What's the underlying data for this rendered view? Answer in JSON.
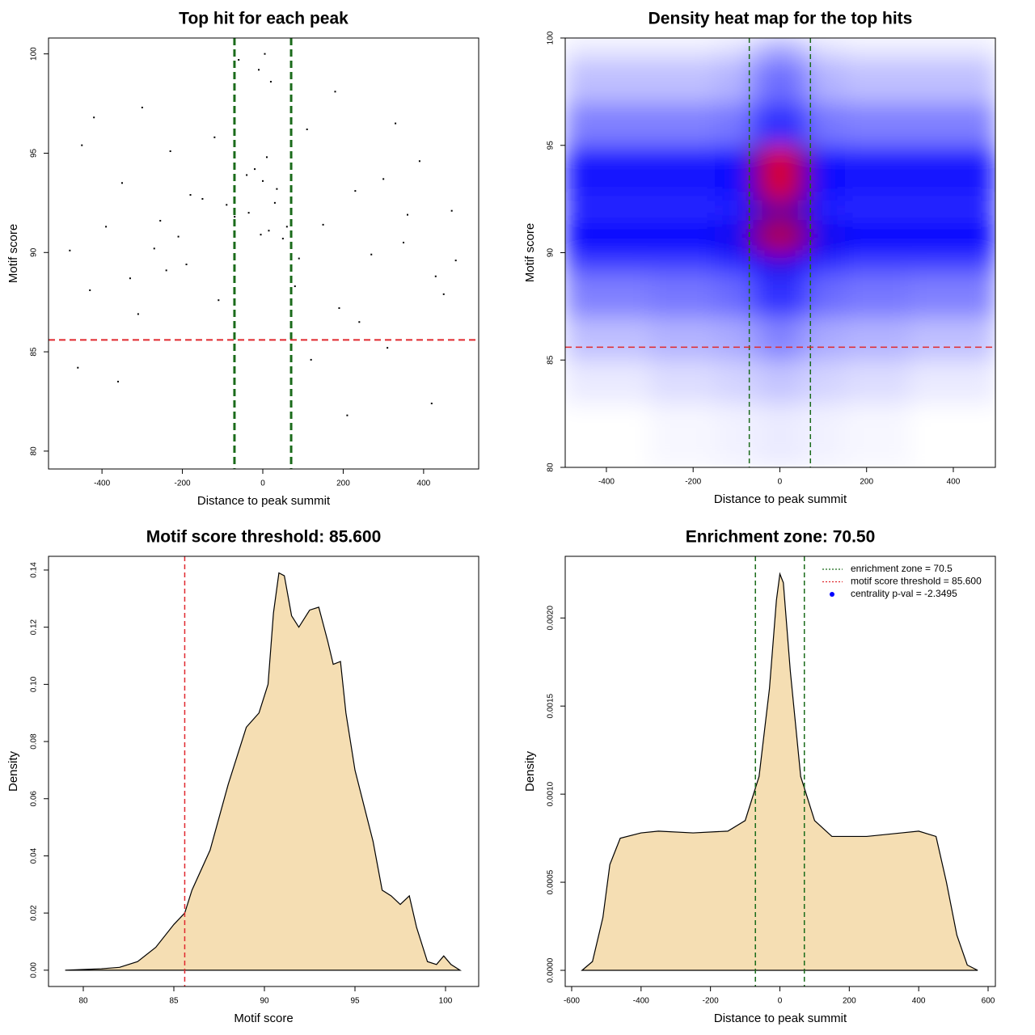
{
  "chart_data": [
    {
      "type": "scatter",
      "title": "Top hit for each peak",
      "x_label": "Distance to peak summit",
      "y_label": "Motif score",
      "xlim": [
        -533,
        537
      ],
      "ylim": [
        79.1,
        100.8
      ],
      "xticks": [
        -400,
        -200,
        0,
        200,
        400
      ],
      "yticks": [
        80,
        85,
        90,
        95,
        100
      ],
      "color": "#000000",
      "x": [
        -460,
        -430,
        -390,
        -350,
        -310,
        -270,
        -230,
        -190,
        -150,
        -110,
        -70,
        -40,
        -20,
        0,
        15,
        30,
        50,
        80,
        110,
        150,
        190,
        230,
        270,
        310,
        350,
        390,
        430,
        470,
        -480,
        -420,
        -360,
        -300,
        -240,
        -180,
        -120,
        -60,
        -10,
        20,
        60,
        120,
        180,
        240,
        300,
        360,
        420,
        480,
        -450,
        -330,
        -210,
        -90,
        10,
        90,
        210,
        330,
        450,
        -255,
        5,
        -5,
        35,
        -35
      ],
      "y": [
        84.2,
        88.1,
        91.3,
        93.5,
        86.9,
        90.2,
        95.1,
        89.4,
        92.7,
        87.6,
        91.8,
        93.9,
        94.2,
        93.6,
        91.1,
        92.5,
        90.7,
        88.3,
        96.2,
        91.4,
        87.2,
        93.1,
        89.9,
        85.2,
        90.5,
        94.6,
        88.8,
        92.1,
        90.1,
        96.8,
        83.5,
        97.3,
        89.1,
        92.9,
        95.8,
        99.7,
        99.2,
        98.6,
        91.3,
        84.6,
        98.1,
        86.5,
        93.7,
        91.9,
        82.4,
        89.6,
        95.4,
        88.7,
        90.8,
        92.4,
        94.8,
        89.7,
        81.8,
        96.5,
        87.9,
        91.6,
        100,
        90.9,
        93.2,
        92.0
      ],
      "vlines": [
        {
          "value": -70.5,
          "color": "#1a6b1a"
        },
        {
          "value": 70.5,
          "color": "#1a6b1a"
        }
      ],
      "hlines": [
        {
          "value": 85.6,
          "color": "#e0282e"
        }
      ]
    },
    {
      "type": "heatmap",
      "title": "Density heat map for the top hits",
      "x_label": "Distance to peak summit",
      "y_label": "Motif score",
      "xlim": [
        -495,
        497
      ],
      "ylim": [
        80,
        100
      ],
      "xticks": [
        -400,
        -200,
        0,
        200,
        400
      ],
      "yticks": [
        80,
        85,
        90,
        95,
        100
      ],
      "x_edges": [
        -495,
        -300,
        -150,
        -70,
        -30,
        30,
        70,
        150,
        300,
        497
      ],
      "y_edges": [
        80,
        83,
        85,
        87,
        89,
        90,
        91.5,
        92.5,
        95,
        97,
        99,
        100
      ],
      "z": [
        [
          0,
          0.02,
          0.03,
          0.04,
          0.05,
          0.04,
          0.03,
          0.02,
          0
        ],
        [
          0.05,
          0.08,
          0.1,
          0.12,
          0.14,
          0.12,
          0.1,
          0.08,
          0.05
        ],
        [
          0.15,
          0.18,
          0.2,
          0.25,
          0.3,
          0.25,
          0.2,
          0.18,
          0.15
        ],
        [
          0.3,
          0.32,
          0.35,
          0.45,
          0.5,
          0.45,
          0.35,
          0.32,
          0.3
        ],
        [
          0.45,
          0.45,
          0.5,
          0.6,
          0.65,
          0.6,
          0.5,
          0.45,
          0.45
        ],
        [
          0.6,
          0.6,
          0.62,
          0.8,
          0.88,
          0.8,
          0.62,
          0.6,
          0.6
        ],
        [
          0.5,
          0.5,
          0.52,
          0.7,
          0.75,
          0.7,
          0.52,
          0.5,
          0.5
        ],
        [
          0.55,
          0.55,
          0.58,
          0.8,
          0.95,
          0.8,
          0.58,
          0.55,
          0.55
        ],
        [
          0.3,
          0.3,
          0.32,
          0.45,
          0.5,
          0.45,
          0.32,
          0.3,
          0.3
        ],
        [
          0.15,
          0.15,
          0.18,
          0.3,
          0.35,
          0.3,
          0.18,
          0.15,
          0.15
        ],
        [
          0.05,
          0.05,
          0.07,
          0.15,
          0.2,
          0.15,
          0.07,
          0.05,
          0.05
        ]
      ],
      "vlines": [
        {
          "value": -70.5,
          "color": "#1a6b1a"
        },
        {
          "value": 70.5,
          "color": "#1a6b1a"
        }
      ],
      "hlines": [
        {
          "value": 85.6,
          "color": "#e0282e"
        }
      ]
    },
    {
      "type": "density",
      "title": "Motif score threshold: 85.600",
      "x_label": "Motif score",
      "y_label": "Density",
      "xlim": [
        78.08,
        101.83
      ],
      "ylim": [
        -0.0057,
        0.1448
      ],
      "xticks": [
        80,
        85,
        90,
        95,
        100
      ],
      "yticks": [
        {
          "value": 0,
          "label": "0.00"
        },
        {
          "value": 0.02,
          "label": "0.02"
        },
        {
          "value": 0.04,
          "label": "0.04"
        },
        {
          "value": 0.06,
          "label": "0.06"
        },
        {
          "value": 0.08,
          "label": "0.08"
        },
        {
          "value": 0.1,
          "label": "0.10"
        },
        {
          "value": 0.12,
          "label": "0.12"
        },
        {
          "value": 0.14,
          "label": "0.14"
        }
      ],
      "color": "#f5deb3",
      "x": [
        79,
        81,
        82,
        83,
        84,
        85,
        85.6,
        86,
        87,
        88,
        89,
        89.7,
        90.2,
        90.5,
        90.8,
        91.1,
        91.5,
        91.9,
        92.5,
        93,
        93.5,
        93.8,
        94.2,
        94.5,
        95,
        95.6,
        96,
        96.5,
        97,
        97.5,
        98,
        98.4,
        99,
        99.5,
        99.9,
        100.3,
        100.8
      ],
      "y": [
        0,
        0.0005,
        0.001,
        0.003,
        0.008,
        0.016,
        0.02,
        0.028,
        0.042,
        0.065,
        0.085,
        0.09,
        0.1,
        0.125,
        0.139,
        0.138,
        0.124,
        0.12,
        0.126,
        0.127,
        0.115,
        0.107,
        0.108,
        0.09,
        0.07,
        0.055,
        0.045,
        0.028,
        0.026,
        0.023,
        0.026,
        0.015,
        0.003,
        0.002,
        0.005,
        0.002,
        0
      ],
      "vlines": [
        {
          "value": 85.6,
          "color": "#e0282e"
        }
      ]
    },
    {
      "type": "density",
      "title": "Enrichment zone: 70.50",
      "x_label": "Distance to peak summit",
      "y_label": "Density",
      "xlim": [
        -618.6,
        621
      ],
      "ylim": [
        -9.17e-05,
        0.00235
      ],
      "xticks": [
        -600,
        -400,
        -200,
        0,
        200,
        400,
        600
      ],
      "yticks": [
        {
          "value": 0,
          "label": "0.0000"
        },
        {
          "value": 0.0005,
          "label": "0.0005"
        },
        {
          "value": 0.001,
          "label": "0.0010"
        },
        {
          "value": 0.0015,
          "label": "0.0015"
        },
        {
          "value": 0.002,
          "label": "0.0020"
        }
      ],
      "color": "#f5deb3",
      "x": [
        -570,
        -540,
        -510,
        -490,
        -460,
        -400,
        -350,
        -250,
        -150,
        -100,
        -60,
        -30,
        -10,
        0,
        10,
        30,
        60,
        100,
        150,
        250,
        350,
        400,
        450,
        480,
        510,
        540,
        570
      ],
      "y": [
        0,
        5e-05,
        0.0003,
        0.0006,
        0.00075,
        0.00078,
        0.00079,
        0.00078,
        0.00079,
        0.00085,
        0.0011,
        0.0016,
        0.0021,
        0.00225,
        0.0022,
        0.0017,
        0.0011,
        0.00085,
        0.00076,
        0.00076,
        0.00078,
        0.00079,
        0.00076,
        0.0005,
        0.0002,
        3e-05,
        0
      ],
      "vlines": [
        {
          "value": -70.5,
          "color": "#1a6b1a"
        },
        {
          "value": 70.5,
          "color": "#1a6b1a"
        }
      ],
      "legend": [
        {
          "label": "enrichment zone = 70.5",
          "color": "#1a6b1a",
          "style": "line"
        },
        {
          "label": "motif score threshold = 85.600",
          "color": "#e0282e",
          "style": "line"
        },
        {
          "label": "centrality p-val = -2.3495",
          "color": "#0000ff",
          "style": "point"
        }
      ]
    }
  ]
}
